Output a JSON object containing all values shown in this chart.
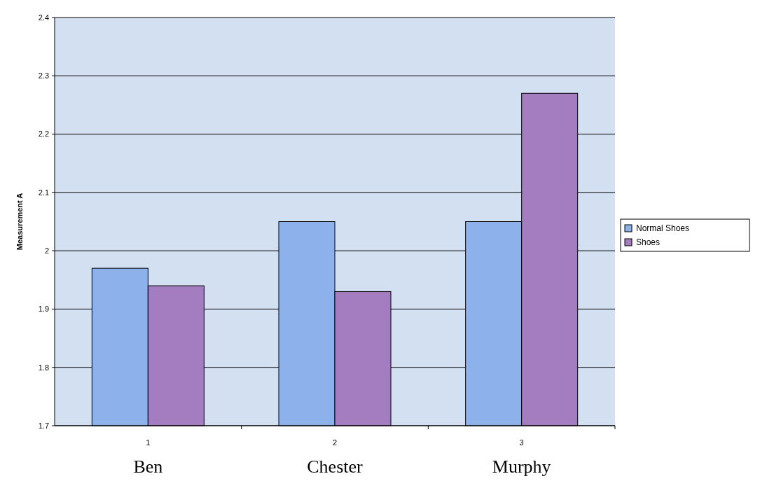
{
  "chart_data": {
    "type": "bar",
    "ylabel": "Measurement A",
    "categories": [
      "1",
      "2",
      "3"
    ],
    "series": [
      {
        "name": "Normal Shoes",
        "color": "#8db1ea",
        "values": [
          1.97,
          2.05,
          2.05
        ]
      },
      {
        "name": "Shoes",
        "color": "#a47cc0",
        "values": [
          1.94,
          1.93,
          2.27
        ]
      }
    ],
    "ylim": [
      1.7,
      2.4
    ],
    "yticks": [
      1.7,
      1.8,
      1.9,
      2,
      2.1,
      2.2,
      2.3,
      2.4
    ],
    "grid": "y",
    "legend": "right",
    "annotations": [
      "Ben",
      "Chester",
      "Murphy"
    ]
  }
}
